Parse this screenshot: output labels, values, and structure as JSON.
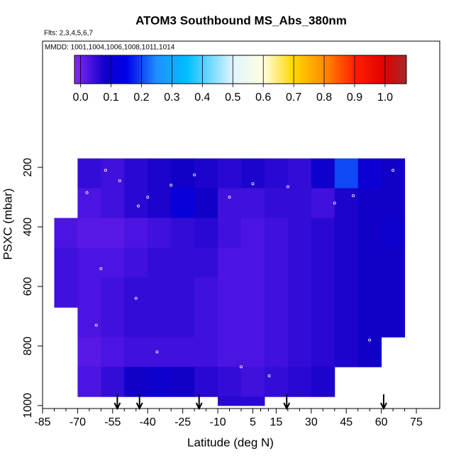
{
  "chart_data": {
    "type": "heatmap",
    "title": "ATOM3 Southbound MS_Abs_380nm",
    "subtitle": "Flts: 2,3,4,5,6,7",
    "annotation": "MMDD: 1001,1004,1006,1008,1011,1014",
    "x_label": "Latitude (deg N)",
    "y_label": "PSXC (mbar)",
    "xlim": [
      -85,
      85
    ],
    "xticks": [
      -85,
      -70,
      -55,
      -40,
      -25,
      -10,
      5,
      15,
      30,
      45,
      60,
      75
    ],
    "ylim": [
      1010,
      -224
    ],
    "yticks": [
      200,
      400,
      600,
      800,
      1000
    ],
    "cells": {
      "lat_edges": [
        -80,
        -70,
        -60,
        -50,
        -40,
        -30,
        -20,
        -10,
        0,
        10,
        20,
        30,
        40,
        50,
        60,
        70,
        80
      ],
      "p_edges": [
        170,
        270,
        370,
        470,
        570,
        670,
        770,
        870,
        970,
        1000
      ],
      "values": [
        [
          null,
          0.05,
          0.04,
          0.06,
          0.07,
          0.08,
          0.07,
          0.06,
          0.07,
          0.06,
          0.05,
          0.09,
          0.2,
          0.1,
          0.08,
          null
        ],
        [
          null,
          0.03,
          0.04,
          0.06,
          0.07,
          0.12,
          0.08,
          0.04,
          0.04,
          0.05,
          0.05,
          0.04,
          0.07,
          0.08,
          0.08,
          null
        ],
        [
          0.03,
          0.02,
          0.02,
          0.03,
          0.04,
          0.05,
          0.06,
          0.04,
          0.03,
          0.04,
          0.05,
          0.06,
          0.07,
          0.08,
          0.09,
          null
        ],
        [
          0.04,
          0.03,
          0.03,
          0.04,
          0.05,
          0.05,
          0.05,
          0.03,
          0.03,
          0.04,
          0.05,
          0.06,
          0.07,
          0.08,
          0.08,
          null
        ],
        [
          0.04,
          0.03,
          0.04,
          0.05,
          0.05,
          0.05,
          0.04,
          0.03,
          0.03,
          0.04,
          0.05,
          0.06,
          0.07,
          0.08,
          0.08,
          null
        ],
        [
          null,
          0.03,
          0.04,
          0.05,
          0.05,
          0.05,
          0.04,
          0.03,
          0.03,
          0.04,
          0.05,
          0.06,
          0.07,
          0.08,
          0.08,
          null
        ],
        [
          null,
          0.02,
          0.03,
          0.04,
          0.04,
          0.04,
          0.04,
          0.03,
          0.03,
          0.04,
          0.05,
          0.06,
          0.07,
          0.08,
          null,
          null
        ],
        [
          null,
          0.03,
          0.05,
          0.08,
          0.09,
          0.08,
          0.06,
          0.05,
          0.04,
          0.05,
          0.06,
          0.07,
          null,
          null,
          null,
          null
        ],
        [
          null,
          null,
          null,
          null,
          null,
          null,
          null,
          0.06,
          0.06,
          null,
          null,
          null,
          null,
          null,
          null,
          null
        ]
      ]
    },
    "points": {
      "lat": [
        -58,
        -52,
        -66,
        -44,
        -40,
        -30,
        -20,
        -5,
        5,
        20,
        40,
        48,
        -60,
        -45,
        -36,
        0,
        12,
        55,
        65,
        -62
      ],
      "p": [
        210,
        245,
        285,
        330,
        300,
        260,
        225,
        300,
        255,
        265,
        320,
        295,
        540,
        640,
        820,
        870,
        900,
        780,
        210,
        730
      ]
    },
    "arrows": [
      -53,
      -43.5,
      -18,
      19.5,
      61
    ],
    "colorbar": {
      "lim": [
        -0.02,
        1.07
      ],
      "ticks": [
        {
          "value": 0,
          "label": "0.0"
        },
        0.1,
        0.2,
        0.3,
        0.4,
        0.5,
        0.6,
        0.7,
        0.8,
        0.9,
        {
          "value": 1,
          "label": "1.0"
        }
      ],
      "stops": [
        {
          "value": -0.02,
          "color": "#8a2be2"
        },
        {
          "value": 0,
          "color": "#7020f0"
        },
        {
          "value": 0.08,
          "color": "#1000c8"
        },
        {
          "value": 0.15,
          "color": "#0000e8"
        },
        {
          "value": 0.25,
          "color": "#1e90ff"
        },
        {
          "value": 0.35,
          "color": "#00bfff"
        },
        {
          "value": 0.5,
          "color": "#e0f4ff"
        },
        {
          "value": 0.6,
          "color": "#ffffe0"
        },
        {
          "value": 0.7,
          "color": "#ffd700"
        },
        {
          "value": 0.8,
          "color": "#ff8c00"
        },
        {
          "value": 0.9,
          "color": "#ff2000"
        },
        {
          "value": 1,
          "color": "#e00000"
        },
        {
          "value": 1.07,
          "color": "#a52a2a"
        }
      ]
    }
  }
}
